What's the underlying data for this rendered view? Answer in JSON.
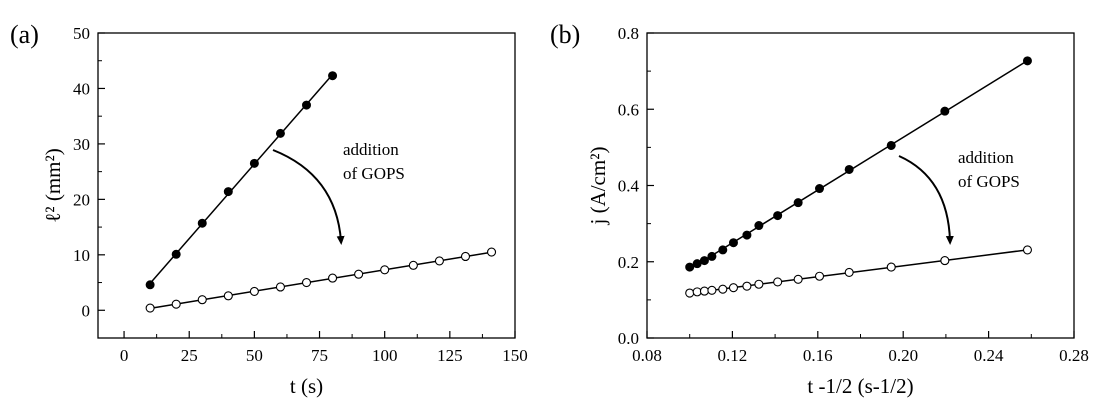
{
  "chart_data": [
    {
      "type": "line",
      "panel_label": "(a)",
      "xlabel": "t (s)",
      "ylabel": "ℓ² (mm²)",
      "xlim": [
        -10,
        150
      ],
      "ylim": [
        -5,
        50
      ],
      "xticks": [
        "0",
        "25",
        "50",
        "75",
        "100",
        "125",
        "150"
      ],
      "yticks": [
        "0",
        "10",
        "20",
        "30",
        "40",
        "50"
      ],
      "grid": false,
      "annotation": [
        "addition",
        "of GOPS"
      ],
      "series": [
        {
          "marker": "filled-circle",
          "fit_line": true,
          "x": [
            10,
            20,
            30,
            40,
            50,
            60,
            70,
            80
          ],
          "y": [
            4.6,
            10.1,
            15.7,
            21.4,
            26.5,
            31.9,
            37.0,
            42.3
          ]
        },
        {
          "marker": "open-circle",
          "fit_line": true,
          "x": [
            10,
            20,
            30,
            40,
            50,
            60,
            70,
            80,
            90,
            100,
            111,
            121,
            131,
            141
          ],
          "y": [
            0.4,
            1.1,
            1.9,
            2.6,
            3.4,
            4.2,
            5.0,
            5.8,
            6.5,
            7.3,
            8.1,
            8.9,
            9.7,
            10.5
          ]
        }
      ]
    },
    {
      "type": "line",
      "panel_label": "(b)",
      "xlabel": "t -1/2 (s-1/2)",
      "ylabel": "j (A/cm²)",
      "xlim": [
        0.08,
        0.28
      ],
      "ylim": [
        0.0,
        0.8
      ],
      "xticks": [
        "0.08",
        "0.12",
        "0.16",
        "0.20",
        "0.24",
        "0.28"
      ],
      "yticks": [
        "0.0",
        "0.2",
        "0.4",
        "0.6",
        "0.8"
      ],
      "grid": false,
      "annotation": [
        "addition",
        "of GOPS"
      ],
      "series": [
        {
          "marker": "filled-circle",
          "fit_line": true,
          "x": [
            0.1,
            0.1035,
            0.1069,
            0.1104,
            0.1155,
            0.1205,
            0.1268,
            0.1324,
            0.1412,
            0.1508,
            0.1608,
            0.1747,
            0.1944,
            0.2195,
            0.2582
          ],
          "y": [
            0.186,
            0.195,
            0.203,
            0.214,
            0.231,
            0.25,
            0.27,
            0.295,
            0.321,
            0.355,
            0.392,
            0.442,
            0.505,
            0.595,
            0.727
          ]
        },
        {
          "marker": "open-circle",
          "fit_line": true,
          "x": [
            0.1,
            0.1035,
            0.1069,
            0.1104,
            0.1155,
            0.1205,
            0.1268,
            0.1324,
            0.1412,
            0.1508,
            0.1608,
            0.1747,
            0.1944,
            0.2195,
            0.2582
          ],
          "y": [
            0.118,
            0.121,
            0.123,
            0.125,
            0.128,
            0.132,
            0.136,
            0.141,
            0.147,
            0.154,
            0.162,
            0.172,
            0.186,
            0.203,
            0.231
          ]
        }
      ]
    }
  ]
}
